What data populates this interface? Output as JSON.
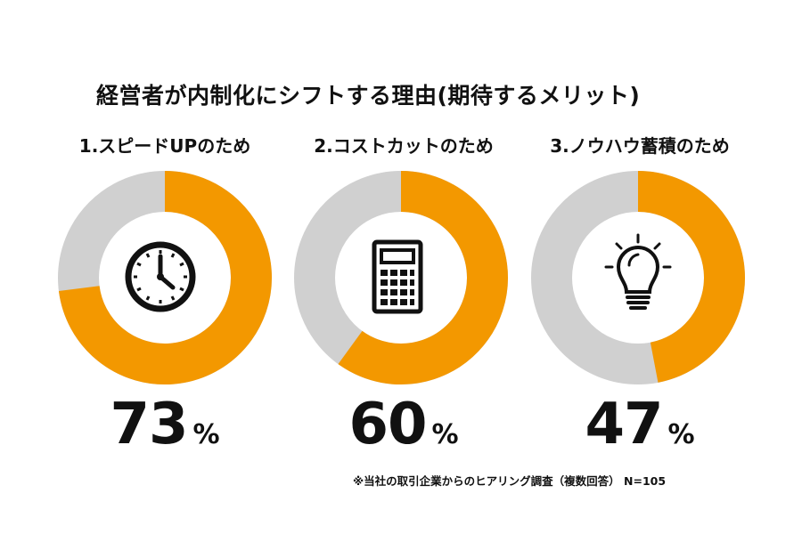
{
  "title": "経営者が内制化にシフトする理由(期待するメリット)",
  "note": "※当社の取引企業からのヒアリング調査（複数回答） N=105",
  "colors": {
    "filled": "#f39800",
    "remaining": "#d0d0d0",
    "icon": "#111111"
  },
  "chart_data": {
    "type": "pie",
    "title": "経営者が内制化にシフトする理由(期待するメリット)",
    "unit": "%",
    "series": [
      {
        "label": "1.スピードUPのため",
        "value": 73,
        "icon": "clock-icon"
      },
      {
        "label": "2.コストカットのため",
        "value": 60,
        "icon": "calculator-icon"
      },
      {
        "label": "3.ノウハウ蓄積のため",
        "value": 47,
        "icon": "lightbulb-icon"
      }
    ]
  }
}
